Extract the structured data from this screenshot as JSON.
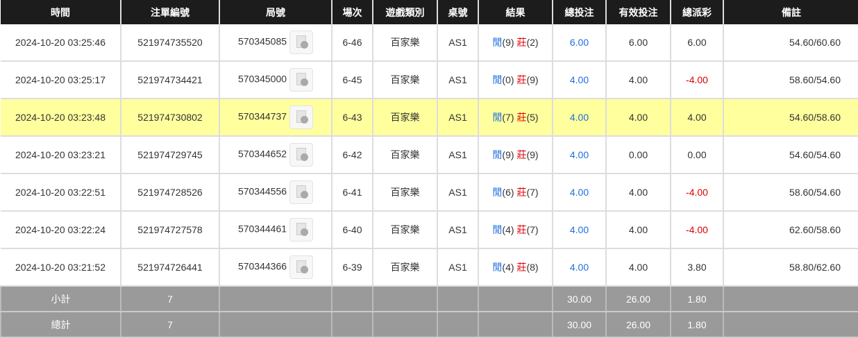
{
  "headers": [
    "時間",
    "注單編號",
    "局號",
    "場次",
    "遊戲類別",
    "桌號",
    "結果",
    "總投注",
    "有效投注",
    "總派彩",
    "備註"
  ],
  "rows": [
    {
      "time": "2024-10-20 03:25:46",
      "bet_id": "521974735520",
      "round": "570345085",
      "shoe": "6-46",
      "game": "百家樂",
      "table": "AS1",
      "player": "閒",
      "player_pts": "(9)",
      "banker": "莊",
      "banker_pts": "(2)",
      "total": "6.00",
      "valid": "6.00",
      "payout": "6.00",
      "payout_neg": false,
      "note": "54.60/60.60",
      "highlight": false
    },
    {
      "time": "2024-10-20 03:25:17",
      "bet_id": "521974734421",
      "round": "570345000",
      "shoe": "6-45",
      "game": "百家樂",
      "table": "AS1",
      "player": "閒",
      "player_pts": "(0)",
      "banker": "莊",
      "banker_pts": "(9)",
      "total": "4.00",
      "valid": "4.00",
      "payout": "-4.00",
      "payout_neg": true,
      "note": "58.60/54.60",
      "highlight": false
    },
    {
      "time": "2024-10-20 03:23:48",
      "bet_id": "521974730802",
      "round": "570344737",
      "shoe": "6-43",
      "game": "百家樂",
      "table": "AS1",
      "player": "閒",
      "player_pts": "(7)",
      "banker": "莊",
      "banker_pts": "(5)",
      "total": "4.00",
      "valid": "4.00",
      "payout": "4.00",
      "payout_neg": false,
      "note": "54.60/58.60",
      "highlight": true
    },
    {
      "time": "2024-10-20 03:23:21",
      "bet_id": "521974729745",
      "round": "570344652",
      "shoe": "6-42",
      "game": "百家樂",
      "table": "AS1",
      "player": "閒",
      "player_pts": "(9)",
      "banker": "莊",
      "banker_pts": "(9)",
      "total": "4.00",
      "valid": "0.00",
      "payout": "0.00",
      "payout_neg": false,
      "note": "54.60/54.60",
      "highlight": false
    },
    {
      "time": "2024-10-20 03:22:51",
      "bet_id": "521974728526",
      "round": "570344556",
      "shoe": "6-41",
      "game": "百家樂",
      "table": "AS1",
      "player": "閒",
      "player_pts": "(6)",
      "banker": "莊",
      "banker_pts": "(7)",
      "total": "4.00",
      "valid": "4.00",
      "payout": "-4.00",
      "payout_neg": true,
      "note": "58.60/54.60",
      "highlight": false
    },
    {
      "time": "2024-10-20 03:22:24",
      "bet_id": "521974727578",
      "round": "570344461",
      "shoe": "6-40",
      "game": "百家樂",
      "table": "AS1",
      "player": "閒",
      "player_pts": "(4)",
      "banker": "莊",
      "banker_pts": "(7)",
      "total": "4.00",
      "valid": "4.00",
      "payout": "-4.00",
      "payout_neg": true,
      "note": "62.60/58.60",
      "highlight": false
    },
    {
      "time": "2024-10-20 03:21:52",
      "bet_id": "521974726441",
      "round": "570344366",
      "shoe": "6-39",
      "game": "百家樂",
      "table": "AS1",
      "player": "閒",
      "player_pts": "(4)",
      "banker": "莊",
      "banker_pts": "(8)",
      "total": "4.00",
      "valid": "4.00",
      "payout": "3.80",
      "payout_neg": false,
      "note": "58.80/62.60",
      "highlight": false
    }
  ],
  "summary": [
    {
      "label": "小計",
      "count": "7",
      "total": "30.00",
      "valid": "26.00",
      "payout": "1.80"
    },
    {
      "label": "總計",
      "count": "7",
      "total": "30.00",
      "valid": "26.00",
      "payout": "1.80"
    }
  ],
  "colors": {
    "header_bg": "#1c1c1c",
    "highlight": "#ffff9e",
    "player": "#1f6fe0",
    "banker": "#e00000",
    "summary_bg": "#9a9a9a"
  }
}
